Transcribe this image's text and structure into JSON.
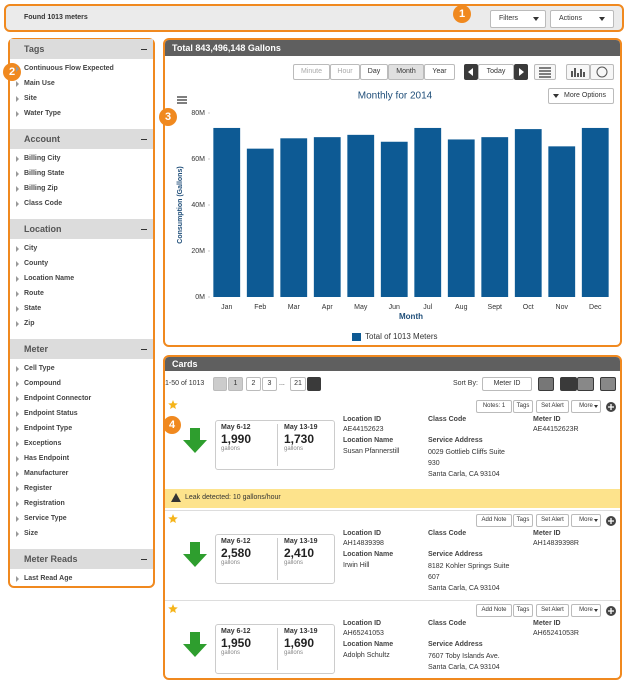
{
  "header": {
    "found": "Found 1013 meters",
    "badge": "1",
    "filters": "Filters",
    "actions": "Actions"
  },
  "sidebar": {
    "badge": "2",
    "sections": [
      {
        "title": "Tags",
        "items": [
          "Continuous Flow Expected",
          "Main Use",
          "Site",
          "Water Type"
        ]
      },
      {
        "title": "Account",
        "items": [
          "Billing City",
          "Billing State",
          "Billing Zip",
          "Class Code"
        ]
      },
      {
        "title": "Location",
        "items": [
          "City",
          "County",
          "Location Name",
          "Route",
          "State",
          "Zip"
        ]
      },
      {
        "title": "Meter",
        "items": [
          "Cell Type",
          "Compound",
          "Endpoint Connector",
          "Endpoint Status",
          "Endpoint Type",
          "Exceptions",
          "Has Endpoint",
          "Manufacturer",
          "Register",
          "Registration",
          "Service Type",
          "Size"
        ]
      },
      {
        "title": "Meter Reads",
        "items": [
          "Last Read Age"
        ]
      }
    ]
  },
  "chart_panel": {
    "badge": "3",
    "title": "Total 843,496,148 Gallons",
    "intervals": [
      "Minute",
      "Hour",
      "Day",
      "Month",
      "Year"
    ],
    "today": "Today",
    "more_options": "More Options"
  },
  "chart_data": {
    "type": "bar",
    "title": "Monthly for 2014",
    "y_label": "Consumption (Gallons)",
    "x_label": "Month",
    "categories": [
      "Jan",
      "Feb",
      "Mar",
      "Apr",
      "May",
      "Jun",
      "Jul",
      "Aug",
      "Sept",
      "Oct",
      "Nov",
      "Dec"
    ],
    "series": [
      {
        "name": "Total of 1013 Meters",
        "color": "#0d5a94",
        "values": [
          73.5,
          64.5,
          69,
          69.5,
          70.5,
          67.5,
          73.5,
          68.5,
          69.5,
          73,
          65.5,
          73.5
        ]
      }
    ],
    "ylim": [
      0,
      80
    ],
    "yticks": [
      {
        "value": 0,
        "label": "0M"
      },
      {
        "value": 20,
        "label": "20M"
      },
      {
        "value": 40,
        "label": "40M"
      },
      {
        "value": 60,
        "label": "60M"
      },
      {
        "value": 80,
        "label": "80M"
      }
    ]
  },
  "cards_panel": {
    "badge": "4",
    "title": "Cards",
    "range": "1-50 of 1013",
    "pages": [
      "1",
      "2",
      "3",
      "...",
      "21"
    ],
    "sort_label": "Sort By:",
    "sort_value": "Meter ID",
    "labels": {
      "location_id": "Location ID",
      "location_name": "Location Name",
      "class_code": "Class Code",
      "service_address": "Service Address",
      "meter_id": "Meter ID",
      "unit": "gallons"
    },
    "alert": "Leak detected: 10 gallons/hour",
    "cards": [
      {
        "buttons": [
          "Notes: 1",
          "Tags",
          "Set Alert",
          "More"
        ],
        "weeks": [
          {
            "period": "May 6-12",
            "value": "1,990"
          },
          {
            "period": "May 13-19",
            "value": "1,730"
          }
        ],
        "location_id": "AE44152623",
        "location_name": "Susan Pfannerstill",
        "address": [
          "0029 Gottlieb Cliffs Suite",
          "930",
          "Santa Carla, CA 93104"
        ],
        "meter_id": "AE44152623R"
      },
      {
        "buttons": [
          "Add Note",
          "Tags",
          "Set Alert",
          "More"
        ],
        "weeks": [
          {
            "period": "May 6-12",
            "value": "2,580"
          },
          {
            "period": "May 13-19",
            "value": "2,410"
          }
        ],
        "location_id": "AH14839398",
        "location_name": "Irwin Hill",
        "address": [
          "8182 Kohler Springs Suite",
          "607",
          "Santa Carla, CA 93104"
        ],
        "meter_id": "AH14839398R"
      },
      {
        "buttons": [
          "Add Note",
          "Tags",
          "Set Alert",
          "More"
        ],
        "weeks": [
          {
            "period": "May 6-12",
            "value": "1,950"
          },
          {
            "period": "May 13-19",
            "value": "1,690"
          }
        ],
        "location_id": "AH65241053",
        "location_name": "Adolph Schultz",
        "address": [
          "7607 Toby Islands Ave.",
          "Santa Carla, CA 93104"
        ],
        "meter_id": "AH65241053R"
      }
    ]
  }
}
